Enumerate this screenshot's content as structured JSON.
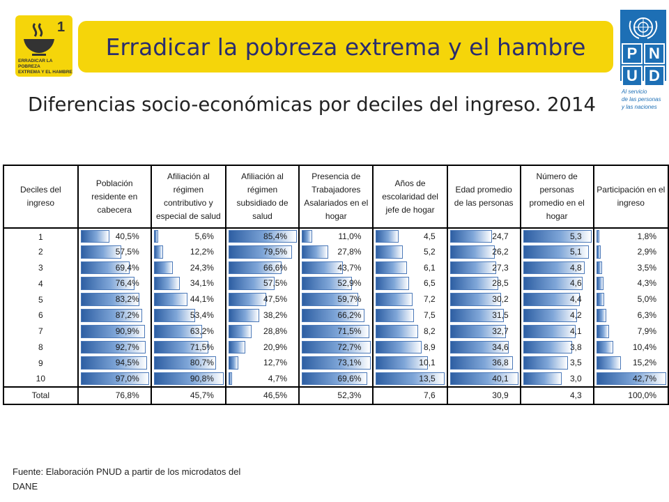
{
  "mdg_logo": {
    "number": "1",
    "caption_line1": "ERRADICAR LA POBREZA",
    "caption_line2": "EXTREMA Y EL HAMBRE"
  },
  "banner": {
    "title": "Erradicar la pobreza extrema y el hambre"
  },
  "pnud": {
    "letters": [
      "P",
      "N",
      "U",
      "D"
    ],
    "tagline_line1": "Al servicio",
    "tagline_line2": "de las personas",
    "tagline_line3": "y las naciones"
  },
  "subtitle": "Diferencias socio-económicas por deciles del ingreso. 2014",
  "table": {
    "headers": [
      "Deciles del ingreso",
      "Población residente en cabecera",
      "Afiliación al régimen contributivo y especial de salud",
      "Afiliación al régimen subsidiado de salud",
      "Presencia de Trabajadores Asalariados en el hogar",
      "Años de escolaridad del jefe de hogar",
      "Edad promedio de las personas",
      "Número de personas promedio en el hogar",
      "Participación en el ingreso"
    ],
    "rows": [
      {
        "decile": "1",
        "values": [
          "40,5%",
          "5,6%",
          "85,4%",
          "11,0%",
          "4,5",
          "24,7",
          "5,3",
          "1,8%"
        ]
      },
      {
        "decile": "2",
        "values": [
          "57,5%",
          "12,2%",
          "79,5%",
          "27,8%",
          "5,2",
          "26,2",
          "5,1",
          "2,9%"
        ]
      },
      {
        "decile": "3",
        "values": [
          "69,4%",
          "24,3%",
          "66,6%",
          "43,7%",
          "6,1",
          "27,3",
          "4,8",
          "3,5%"
        ]
      },
      {
        "decile": "4",
        "values": [
          "76,4%",
          "34,1%",
          "57,5%",
          "52,9%",
          "6,5",
          "28,5",
          "4,6",
          "4,3%"
        ]
      },
      {
        "decile": "5",
        "values": [
          "83,2%",
          "44,1%",
          "47,5%",
          "59,7%",
          "7,2",
          "30,2",
          "4,4",
          "5,0%"
        ]
      },
      {
        "decile": "6",
        "values": [
          "87,2%",
          "53,4%",
          "38,2%",
          "66,2%",
          "7,5",
          "31,5",
          "4,2",
          "6,3%"
        ]
      },
      {
        "decile": "7",
        "values": [
          "90,9%",
          "63,2%",
          "28,8%",
          "71,5%",
          "8,2",
          "32,7",
          "4,1",
          "7,9%"
        ]
      },
      {
        "decile": "8",
        "values": [
          "92,7%",
          "71,5%",
          "20,9%",
          "72,7%",
          "8,9",
          "34,6",
          "3,8",
          "10,4%"
        ]
      },
      {
        "decile": "9",
        "values": [
          "94,5%",
          "80,7%",
          "12,7%",
          "73,1%",
          "10,1",
          "36,8",
          "3,5",
          "15,2%"
        ]
      },
      {
        "decile": "10",
        "values": [
          "97,0%",
          "90,8%",
          "4,7%",
          "69,6%",
          "13,5",
          "40,1",
          "3,0",
          "42,7%"
        ]
      }
    ],
    "total": {
      "label": "Total",
      "values": [
        "76,8%",
        "45,7%",
        "46,5%",
        "52,3%",
        "7,6",
        "30,9",
        "4,3",
        "100,0%"
      ]
    }
  },
  "source": {
    "line1": "Fuente: Elaboración PNUD a partir de los microdatos del",
    "line2": "DANE"
  },
  "colors": {
    "banner": "#f5d50a",
    "title_text": "#2a2d6e",
    "pnud_blue": "#1d6fb5",
    "bar_dark": "#2e5fa3",
    "bar_light": "#7fa6d8"
  }
}
